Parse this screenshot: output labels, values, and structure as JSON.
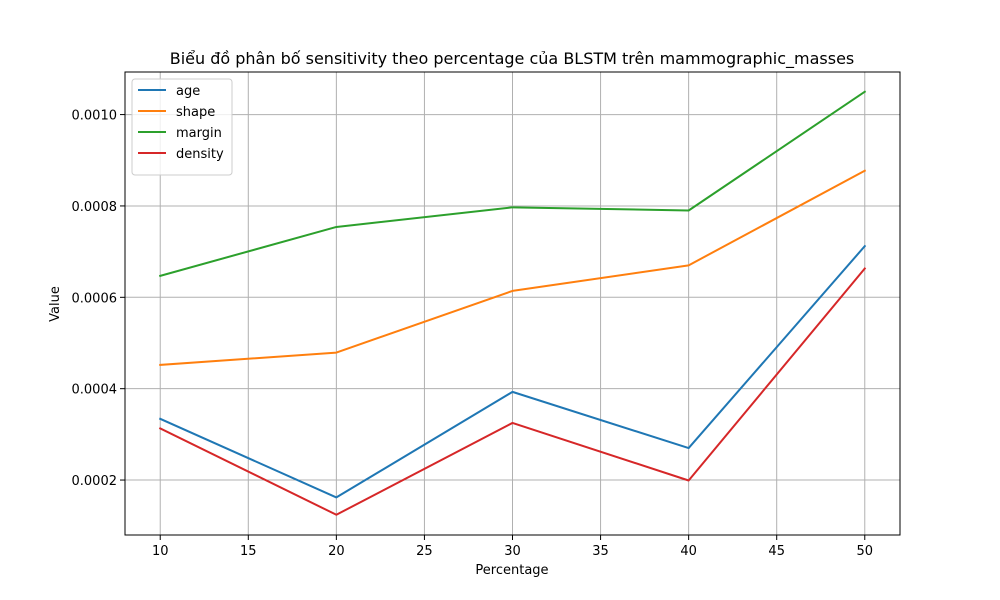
{
  "chart_data": {
    "type": "line",
    "title": "Biểu đồ phân bố sensitivity theo percentage của BLSTM trên mammographic_masses",
    "xlabel": "Percentage",
    "ylabel": "Value",
    "x": [
      10,
      20,
      30,
      40,
      50
    ],
    "xlim": [
      8,
      52
    ],
    "ylim": [
      7.97e-05,
      0.0010932
    ],
    "xticks": [
      10,
      15,
      20,
      25,
      30,
      35,
      40,
      45,
      50
    ],
    "yticks": [
      0.0002,
      0.0004,
      0.0006,
      0.0008,
      0.001
    ],
    "ytick_labels": [
      "0.0002",
      "0.0004",
      "0.0006",
      "0.0008",
      "0.0010"
    ],
    "grid": true,
    "legend_position": "top-left",
    "series": [
      {
        "name": "age",
        "color": "#1f77b4",
        "values": [
          0.000334,
          0.000162,
          0.000393,
          0.00027,
          0.000712
        ]
      },
      {
        "name": "shape",
        "color": "#ff7f0e",
        "values": [
          0.000452,
          0.000479,
          0.000614,
          0.00067,
          0.000877
        ]
      },
      {
        "name": "margin",
        "color": "#2ca02c",
        "values": [
          0.000647,
          0.000754,
          0.000797,
          0.00079,
          0.00105
        ]
      },
      {
        "name": "density",
        "color": "#d62728",
        "values": [
          0.000313,
          0.000124,
          0.000325,
          0.000199,
          0.000663
        ]
      }
    ]
  }
}
